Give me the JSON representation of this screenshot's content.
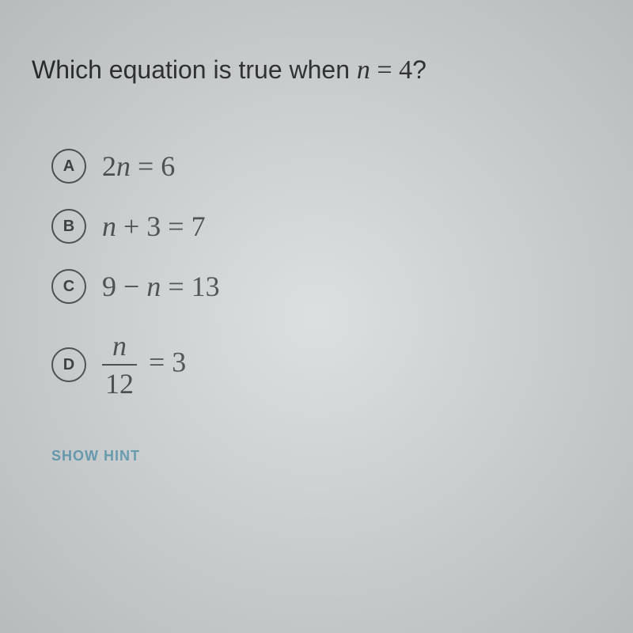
{
  "question": {
    "prefix": "Which equation is true when ",
    "variable": "n",
    "equals": " = ",
    "value": "4",
    "suffix": "?"
  },
  "options": [
    {
      "letter": "A",
      "html": "2<span class='var'>n</span> = 6"
    },
    {
      "letter": "B",
      "html": "<span class='var'>n</span> + 3 = 7"
    },
    {
      "letter": "C",
      "html": "9 − <span class='var'>n</span> = 13"
    },
    {
      "letter": "D",
      "html": "<span class='fraction'><span class='num'>n</span><span class='den'>12</span></span> = 3"
    }
  ],
  "hint": {
    "label": "SHOW HINT"
  },
  "colors": {
    "background": "#d8dcdd",
    "text": "#2a2d2e",
    "option_text": "#484d4e",
    "circle_border": "#4a5254",
    "hint": "#6aa4bb"
  },
  "typography": {
    "question_fontsize": 32,
    "option_fontsize": 36,
    "letter_fontsize": 20,
    "hint_fontsize": 18,
    "math_font": "Times New Roman",
    "ui_font": "Arial"
  }
}
